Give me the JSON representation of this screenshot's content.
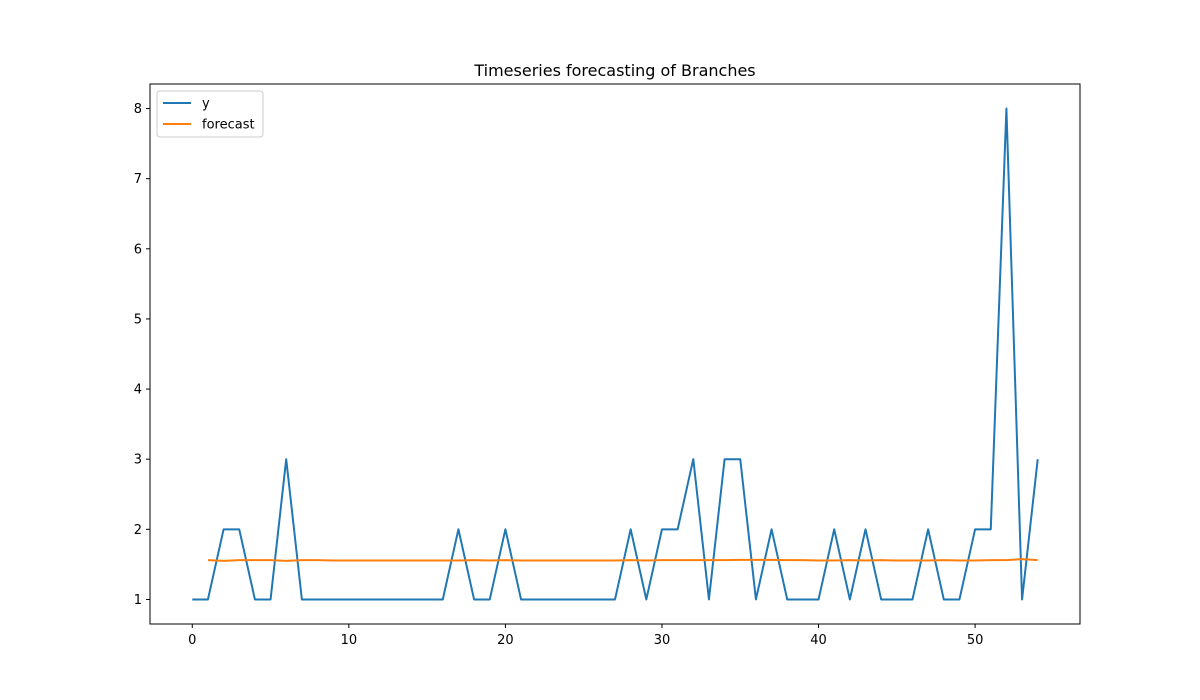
{
  "chart_data": {
    "type": "line",
    "title": "Timeseries forecasting of Branches",
    "xlabel": "",
    "ylabel": "",
    "xlim": [
      -2.7,
      56.7
    ],
    "ylim": [
      0.65,
      8.35
    ],
    "xticks": [
      0,
      10,
      20,
      30,
      40,
      50
    ],
    "yticks": [
      1,
      2,
      3,
      4,
      5,
      6,
      7,
      8
    ],
    "grid": false,
    "legend_position": "top-left",
    "series": [
      {
        "name": "y",
        "color": "#1f77b4",
        "x": [
          0,
          1,
          2,
          3,
          4,
          5,
          6,
          7,
          8,
          9,
          10,
          11,
          12,
          13,
          14,
          15,
          16,
          17,
          18,
          19,
          20,
          21,
          22,
          23,
          24,
          25,
          26,
          27,
          28,
          29,
          30,
          31,
          32,
          33,
          34,
          35,
          36,
          37,
          38,
          39,
          40,
          41,
          42,
          43,
          44,
          45,
          46,
          47,
          48,
          49,
          50,
          51,
          52,
          53,
          54
        ],
        "values": [
          1,
          1,
          2,
          2,
          1,
          1,
          3,
          1,
          1,
          1,
          1,
          1,
          1,
          1,
          1,
          1,
          1,
          2,
          1,
          1,
          2,
          1,
          1,
          1,
          1,
          1,
          1,
          1,
          2,
          1,
          2,
          2,
          3,
          1,
          3,
          3,
          1,
          2,
          1,
          1,
          1,
          2,
          1,
          2,
          1,
          1,
          1,
          2,
          1,
          1,
          2,
          2,
          8,
          1,
          3
        ]
      },
      {
        "name": "forecast",
        "color": "#ff7f0e",
        "x": [
          1,
          2,
          3,
          4,
          5,
          6,
          7,
          8,
          9,
          10,
          11,
          12,
          13,
          14,
          15,
          16,
          17,
          18,
          19,
          20,
          21,
          22,
          23,
          24,
          25,
          26,
          27,
          28,
          29,
          30,
          31,
          32,
          33,
          34,
          35,
          36,
          37,
          38,
          39,
          40,
          41,
          42,
          43,
          44,
          45,
          46,
          47,
          48,
          49,
          50,
          51,
          52,
          53,
          54
        ],
        "values": [
          1.56,
          1.55,
          1.56,
          1.56,
          1.56,
          1.55,
          1.56,
          1.56,
          1.555,
          1.555,
          1.555,
          1.555,
          1.555,
          1.555,
          1.555,
          1.555,
          1.555,
          1.56,
          1.555,
          1.56,
          1.555,
          1.555,
          1.555,
          1.555,
          1.555,
          1.555,
          1.555,
          1.56,
          1.555,
          1.56,
          1.56,
          1.56,
          1.56,
          1.56,
          1.565,
          1.565,
          1.565,
          1.56,
          1.56,
          1.555,
          1.555,
          1.56,
          1.555,
          1.56,
          1.555,
          1.555,
          1.555,
          1.56,
          1.555,
          1.555,
          1.56,
          1.56,
          1.575,
          1.56
        ]
      }
    ]
  }
}
